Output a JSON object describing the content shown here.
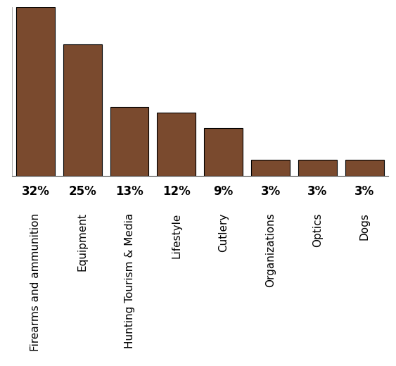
{
  "chart_data": {
    "type": "bar",
    "categories": [
      "Firearms and ammunition",
      "Equipment",
      "Hunting Tourism & Media",
      "Lifestyle",
      "Cutlery",
      "Organizations",
      "Optics",
      "Dogs"
    ],
    "values": [
      32,
      25,
      13,
      12,
      9,
      3,
      3,
      3
    ],
    "value_labels": [
      "32%",
      "25%",
      "13%",
      "12%",
      "9%",
      "3%",
      "3%",
      "3%"
    ],
    "color": "#7a4a2e",
    "ylim": [
      0,
      32
    ],
    "data_labels": true,
    "tick_labels": "x"
  }
}
